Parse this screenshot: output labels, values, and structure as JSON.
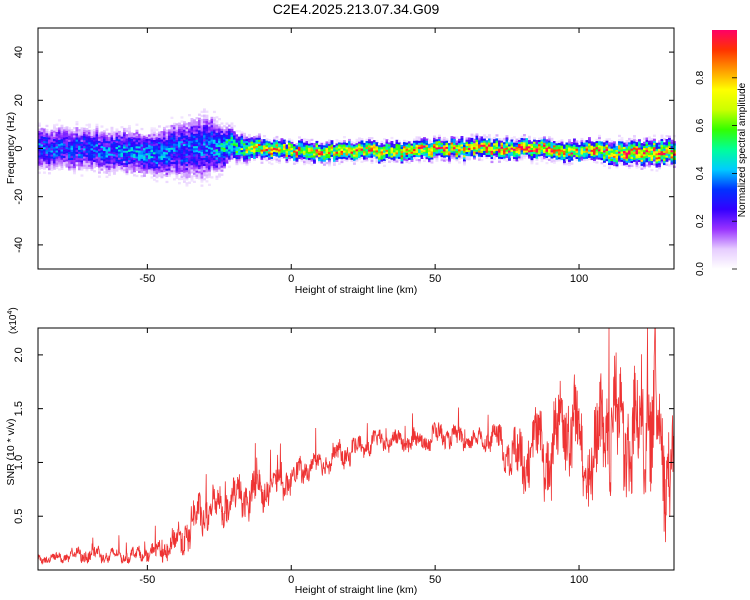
{
  "chart_title": "C2E4.2025.213.07.34.G09",
  "chart_data": [
    {
      "type": "heatmap",
      "xlabel": "Height of straight line (km)",
      "ylabel": "Frequency (Hz)",
      "xlim": [
        -88,
        133
      ],
      "ylim": [
        -50,
        50
      ],
      "x_ticks": [
        -50,
        0,
        50,
        100
      ],
      "y_ticks": [
        -40,
        -20,
        0,
        20,
        40
      ],
      "colorbar": {
        "label": "Normalized spectral amplitude",
        "range": [
          0,
          1
        ],
        "ticks": [
          0.0,
          0.2,
          0.4,
          0.6,
          0.8
        ],
        "colors": [
          "#ffffff",
          "#e6ccff",
          "#9933ff",
          "#3300ff",
          "#0033ff",
          "#00ccff",
          "#00ff99",
          "#33ff00",
          "#ccff00",
          "#ffff00",
          "#ff9900",
          "#ff3300",
          "#ff0066"
        ]
      },
      "ridge": {
        "description_points_x": [
          -88,
          -70,
          -50,
          -30,
          -20,
          -10,
          0,
          20,
          40,
          60,
          80,
          100,
          120,
          133
        ],
        "center_freq": [
          0,
          0,
          -2,
          1,
          1,
          0,
          -1,
          -1,
          -1,
          0,
          0,
          -1,
          -2,
          -1
        ],
        "peak_amplitude": [
          0.35,
          0.35,
          0.4,
          0.35,
          0.55,
          0.85,
          0.8,
          0.8,
          0.85,
          0.85,
          0.95,
          0.8,
          0.9,
          0.9
        ],
        "noise_spread_hz": [
          9,
          9,
          9,
          14,
          6,
          4,
          4,
          4,
          4,
          4,
          4,
          4,
          5,
          5
        ]
      }
    },
    {
      "type": "line",
      "xlabel": "Height of straight line (km)",
      "ylabel": "SNR (10 * v/v)",
      "y_scale_label": "(x10",
      "y_scale_exp": "4",
      "y_scale_close": ")",
      "xlim": [
        -88,
        133
      ],
      "ylim": [
        0,
        2.25
      ],
      "x_ticks": [
        -50,
        0,
        50,
        100
      ],
      "y_ticks": [
        0.5,
        1.0,
        1.5,
        2.0
      ],
      "y_tick_labels": [
        "0.5",
        "1.0",
        "1.5",
        "2.0"
      ],
      "color": "#ee3333",
      "series": [
        {
          "x": [
            -88,
            -80,
            -70,
            -60,
            -50,
            -45,
            -40,
            -35,
            -30,
            -25,
            -20,
            -15,
            -10,
            -5,
            0,
            5,
            10,
            15,
            20,
            25,
            30,
            35,
            40,
            45,
            50,
            55,
            60,
            65,
            70,
            75,
            80,
            85,
            90,
            95,
            100,
            105,
            110,
            115,
            120,
            125,
            130,
            133
          ],
          "y": [
            0.1,
            0.12,
            0.15,
            0.13,
            0.15,
            0.18,
            0.25,
            0.4,
            0.55,
            0.6,
            0.65,
            0.7,
            0.75,
            0.8,
            0.85,
            0.95,
            1.0,
            1.05,
            1.1,
            1.15,
            1.2,
            1.2,
            1.2,
            1.2,
            1.25,
            1.25,
            1.2,
            1.2,
            1.25,
            1.1,
            1.0,
            1.2,
            1.0,
            1.5,
            1.2,
            1.0,
            1.4,
            1.3,
            1.2,
            1.5,
            1.0,
            1.2
          ],
          "variability": [
            0.04,
            0.05,
            0.08,
            0.06,
            0.07,
            0.1,
            0.15,
            0.2,
            0.2,
            0.18,
            0.2,
            0.2,
            0.18,
            0.15,
            0.15,
            0.12,
            0.12,
            0.12,
            0.12,
            0.1,
            0.1,
            0.1,
            0.1,
            0.1,
            0.12,
            0.1,
            0.1,
            0.1,
            0.12,
            0.2,
            0.3,
            0.3,
            0.4,
            0.5,
            0.5,
            0.5,
            0.6,
            0.6,
            0.6,
            0.6,
            0.6,
            0.5
          ]
        }
      ]
    }
  ]
}
